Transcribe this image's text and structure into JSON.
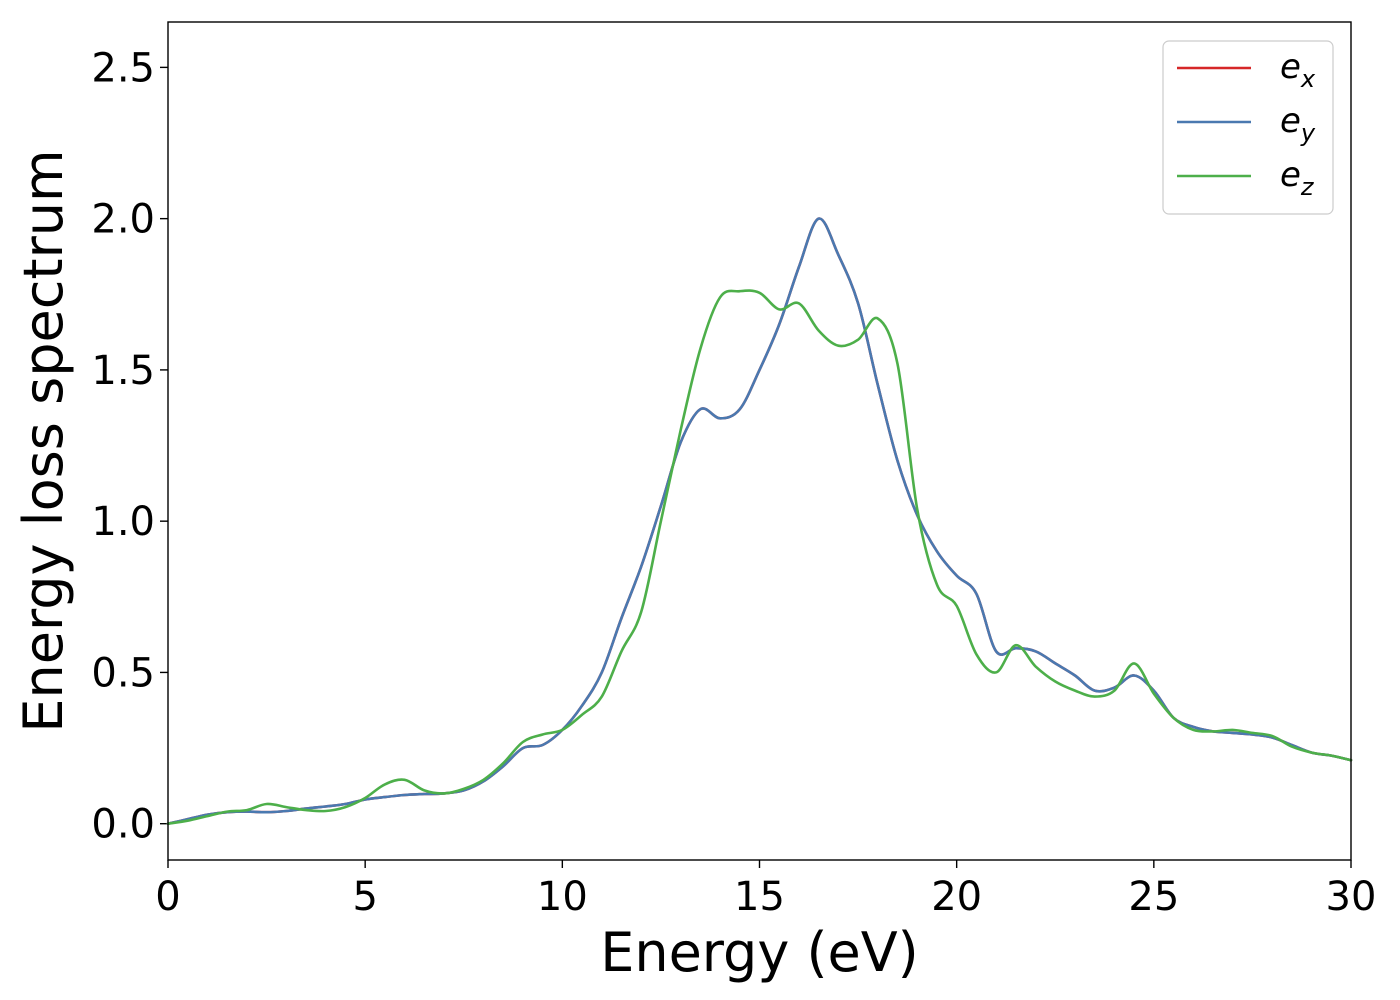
{
  "chart_data": {
    "type": "line",
    "title": "",
    "xlabel": "Energy (eV)",
    "ylabel": "Energy loss spectrum",
    "xlim": [
      0,
      30
    ],
    "ylim": [
      -0.12,
      2.65
    ],
    "xticks": [
      "0",
      "5",
      "10",
      "15",
      "20",
      "25",
      "30"
    ],
    "yticks": [
      "0.0",
      "0.5",
      "1.0",
      "1.5",
      "2.0",
      "2.5"
    ],
    "grid": false,
    "legend_position": "top-right",
    "series": [
      {
        "name": "e_x",
        "legend_base": "e",
        "legend_sub": "x",
        "color": "#d62728",
        "x": [
          0,
          0.5,
          1,
          1.5,
          2,
          2.5,
          3,
          3.5,
          4,
          4.5,
          5,
          5.5,
          6,
          6.5,
          7,
          7.5,
          8,
          8.5,
          9,
          9.5,
          10,
          10.5,
          11,
          11.5,
          12,
          12.5,
          13,
          13.5,
          14,
          14.5,
          15,
          15.5,
          16,
          16.5,
          17,
          17.5,
          18,
          18.5,
          19,
          19.5,
          20,
          20.5,
          21,
          21.5,
          22,
          22.5,
          23,
          23.5,
          24,
          24.5,
          25,
          25.5,
          26,
          26.5,
          27,
          27.5,
          28,
          28.5,
          29,
          29.5,
          30
        ],
        "y": [
          0.0,
          0.015,
          0.03,
          0.038,
          0.04,
          0.038,
          0.042,
          0.05,
          0.057,
          0.065,
          0.08,
          0.088,
          0.095,
          0.098,
          0.1,
          0.11,
          0.14,
          0.19,
          0.25,
          0.26,
          0.31,
          0.39,
          0.5,
          0.68,
          0.85,
          1.05,
          1.26,
          1.37,
          1.34,
          1.37,
          1.5,
          1.65,
          1.84,
          2.0,
          1.88,
          1.72,
          1.45,
          1.2,
          1.02,
          0.9,
          0.82,
          0.76,
          0.57,
          0.58,
          0.57,
          0.53,
          0.49,
          0.44,
          0.45,
          0.49,
          0.44,
          0.35,
          0.32,
          0.305,
          0.3,
          0.295,
          0.285,
          0.26,
          0.235,
          0.225,
          0.21
        ]
      },
      {
        "name": "e_y",
        "legend_base": "e",
        "legend_sub": "y",
        "color": "#4a79b0",
        "x": [
          0,
          0.5,
          1,
          1.5,
          2,
          2.5,
          3,
          3.5,
          4,
          4.5,
          5,
          5.5,
          6,
          6.5,
          7,
          7.5,
          8,
          8.5,
          9,
          9.5,
          10,
          10.5,
          11,
          11.5,
          12,
          12.5,
          13,
          13.5,
          14,
          14.5,
          15,
          15.5,
          16,
          16.5,
          17,
          17.5,
          18,
          18.5,
          19,
          19.5,
          20,
          20.5,
          21,
          21.5,
          22,
          22.5,
          23,
          23.5,
          24,
          24.5,
          25,
          25.5,
          26,
          26.5,
          27,
          27.5,
          28,
          28.5,
          29,
          29.5,
          30
        ],
        "y": [
          0.0,
          0.015,
          0.03,
          0.038,
          0.04,
          0.038,
          0.042,
          0.05,
          0.057,
          0.065,
          0.08,
          0.088,
          0.095,
          0.098,
          0.1,
          0.11,
          0.14,
          0.19,
          0.25,
          0.26,
          0.31,
          0.39,
          0.5,
          0.68,
          0.85,
          1.05,
          1.26,
          1.37,
          1.34,
          1.37,
          1.5,
          1.65,
          1.84,
          2.0,
          1.88,
          1.72,
          1.45,
          1.2,
          1.02,
          0.9,
          0.82,
          0.76,
          0.57,
          0.58,
          0.57,
          0.53,
          0.49,
          0.44,
          0.45,
          0.49,
          0.44,
          0.35,
          0.32,
          0.305,
          0.3,
          0.295,
          0.285,
          0.26,
          0.235,
          0.225,
          0.21
        ]
      },
      {
        "name": "e_z",
        "legend_base": "e",
        "legend_sub": "z",
        "color": "#4daf4a",
        "x": [
          0,
          0.5,
          1,
          1.5,
          2,
          2.5,
          3,
          3.5,
          4,
          4.5,
          5,
          5.5,
          6,
          6.5,
          7,
          7.5,
          8,
          8.5,
          9,
          9.5,
          10,
          10.5,
          11,
          11.5,
          12,
          12.5,
          13,
          13.5,
          14,
          14.5,
          15,
          15.5,
          16,
          16.5,
          17,
          17.5,
          18,
          18.5,
          19,
          19.5,
          20,
          20.5,
          21,
          21.5,
          22,
          22.5,
          23,
          23.5,
          24,
          24.5,
          25,
          25.5,
          26,
          26.5,
          27,
          27.5,
          28,
          28.5,
          29,
          29.5,
          30
        ],
        "y": [
          0.0,
          0.01,
          0.025,
          0.04,
          0.045,
          0.065,
          0.055,
          0.045,
          0.042,
          0.055,
          0.085,
          0.13,
          0.145,
          0.11,
          0.1,
          0.115,
          0.145,
          0.2,
          0.27,
          0.295,
          0.31,
          0.36,
          0.42,
          0.57,
          0.7,
          1.0,
          1.3,
          1.57,
          1.74,
          1.76,
          1.755,
          1.7,
          1.72,
          1.63,
          1.58,
          1.6,
          1.67,
          1.52,
          1.04,
          0.79,
          0.72,
          0.56,
          0.5,
          0.59,
          0.52,
          0.47,
          0.44,
          0.42,
          0.44,
          0.53,
          0.43,
          0.35,
          0.31,
          0.305,
          0.31,
          0.3,
          0.29,
          0.255,
          0.235,
          0.225,
          0.21
        ]
      }
    ]
  }
}
